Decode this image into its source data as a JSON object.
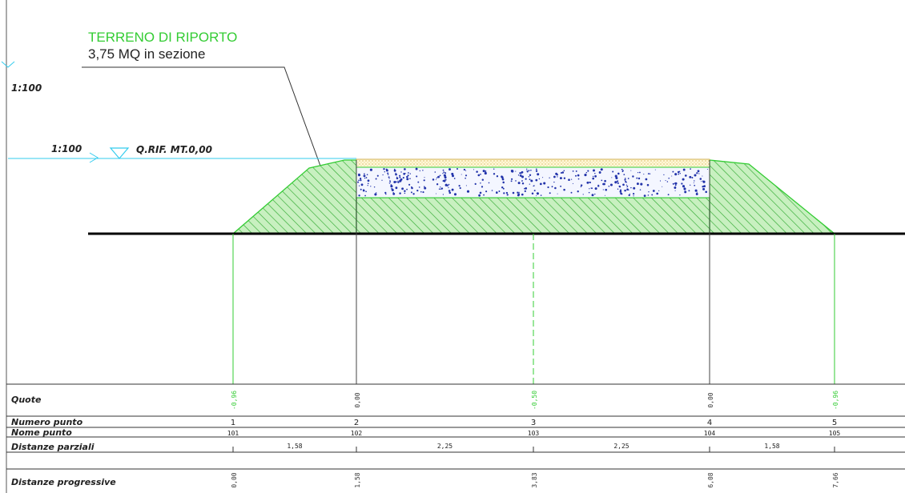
{
  "annotation": {
    "title": "TERRENO DI RIPORTO",
    "subtitle": "3,75 MQ in sezione"
  },
  "scale_labels": {
    "upper": "1:100",
    "lower": "1:100"
  },
  "reference": {
    "label": "Q.RIF. MT.0,00"
  },
  "colors": {
    "fill_green": "#33cc33",
    "line_cyan": "#33ccee",
    "aggregate_blue": "#2233aa",
    "sand_yellow": "#e8c84a"
  },
  "table": {
    "row_labels": {
      "quote": "Quote",
      "numero": "Numero punto",
      "nome": "Nome punto",
      "parziali": "Distanze parziali",
      "progressive": "Distanze progressive"
    },
    "points": [
      {
        "quota": "-0,96",
        "numero": "1",
        "nome": "101",
        "progressiva": "0,00",
        "green": true
      },
      {
        "quota": "0,00",
        "numero": "2",
        "nome": "102",
        "progressiva": "1,58",
        "green": false
      },
      {
        "quota": "-0,50",
        "numero": "3",
        "nome": "103",
        "progressiva": "3,83",
        "green": true
      },
      {
        "quota": "0,00",
        "numero": "4",
        "nome": "104",
        "progressiva": "6,08",
        "green": false
      },
      {
        "quota": "-0,96",
        "numero": "5",
        "nome": "105",
        "progressiva": "7,66",
        "green": true
      }
    ],
    "parziali": [
      "1,58",
      "2,25",
      "2,25",
      "1,58"
    ]
  }
}
